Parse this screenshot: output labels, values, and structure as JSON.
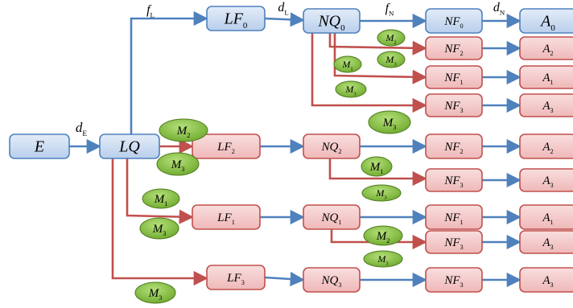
{
  "colors": {
    "blue_fill": "#c6d9f1",
    "blue_stroke": "#4f81bd",
    "red_fill": "#f2c4c4",
    "red_stroke": "#c0504d",
    "green_fill": "#8cc63f",
    "green_stroke": "#4e7a1e"
  },
  "nodes": {
    "E": {
      "label": "E"
    },
    "LQ": {
      "label": "LQ"
    },
    "LF0": {
      "label": "LF",
      "sub": "0"
    },
    "NQ0": {
      "label": "NQ",
      "sub": "0"
    },
    "NF0": {
      "label": "NF",
      "sub": "0"
    },
    "A0": {
      "label": "A",
      "sub": "0"
    },
    "NF2a": {
      "label": "NF",
      "sub": "2"
    },
    "A2a": {
      "label": "A",
      "sub": "2"
    },
    "NF1a": {
      "label": "NF",
      "sub": "1"
    },
    "A1a": {
      "label": "A",
      "sub": "1"
    },
    "NF3a": {
      "label": "NF",
      "sub": "3"
    },
    "A3a": {
      "label": "A",
      "sub": "3"
    },
    "LF2": {
      "label": "LF",
      "sub": "2"
    },
    "NQ2": {
      "label": "NQ",
      "sub": "2"
    },
    "NF2b": {
      "label": "NF",
      "sub": "2"
    },
    "A2b": {
      "label": "A",
      "sub": "2"
    },
    "NF3b": {
      "label": "NF",
      "sub": "3"
    },
    "A3b": {
      "label": "A",
      "sub": "3"
    },
    "LF1": {
      "label": "LF",
      "sub": "1"
    },
    "NQ1": {
      "label": "NQ",
      "sub": "1"
    },
    "NF1b": {
      "label": "NF",
      "sub": "1"
    },
    "A1b": {
      "label": "A",
      "sub": "1"
    },
    "NF3c": {
      "label": "NF",
      "sub": "3"
    },
    "A3c": {
      "label": "A",
      "sub": "3"
    },
    "LF3": {
      "label": "LF",
      "sub": "3"
    },
    "NQ3": {
      "label": "NQ",
      "sub": "3"
    },
    "NF3d": {
      "label": "NF",
      "sub": "3"
    },
    "A3d": {
      "label": "A",
      "sub": "3"
    }
  },
  "edge_labels": {
    "dE": {
      "label": "d",
      "sub": "E"
    },
    "fL": {
      "label": "f",
      "sub": "L"
    },
    "dL": {
      "label": "d",
      "sub": "L"
    },
    "fN": {
      "label": "f",
      "sub": "N"
    },
    "dN": {
      "label": "d",
      "sub": "N"
    }
  },
  "modules": {
    "m_nq0_2": {
      "label": "M",
      "sub": "2"
    },
    "m_nq0_3": {
      "label": "M",
      "sub": "3"
    },
    "m_nq0_1": {
      "label": "M",
      "sub": "1"
    },
    "m_nq0_3b": {
      "label": "M",
      "sub": "3"
    },
    "m_nq0_3c": {
      "label": "M",
      "sub": "3"
    },
    "m_lq_2": {
      "label": "M",
      "sub": "2"
    },
    "m_lq_3": {
      "label": "M",
      "sub": "3"
    },
    "m_nq2_1": {
      "label": "M",
      "sub": "1"
    },
    "m_nq2_3": {
      "label": "M",
      "sub": "3"
    },
    "m_lq_1": {
      "label": "M",
      "sub": "1"
    },
    "m_lq_3b": {
      "label": "M",
      "sub": "3"
    },
    "m_nq1_2": {
      "label": "M",
      "sub": "2"
    },
    "m_nq1_3": {
      "label": "M",
      "sub": "3"
    },
    "m_lq_3c": {
      "label": "M",
      "sub": "3"
    }
  }
}
